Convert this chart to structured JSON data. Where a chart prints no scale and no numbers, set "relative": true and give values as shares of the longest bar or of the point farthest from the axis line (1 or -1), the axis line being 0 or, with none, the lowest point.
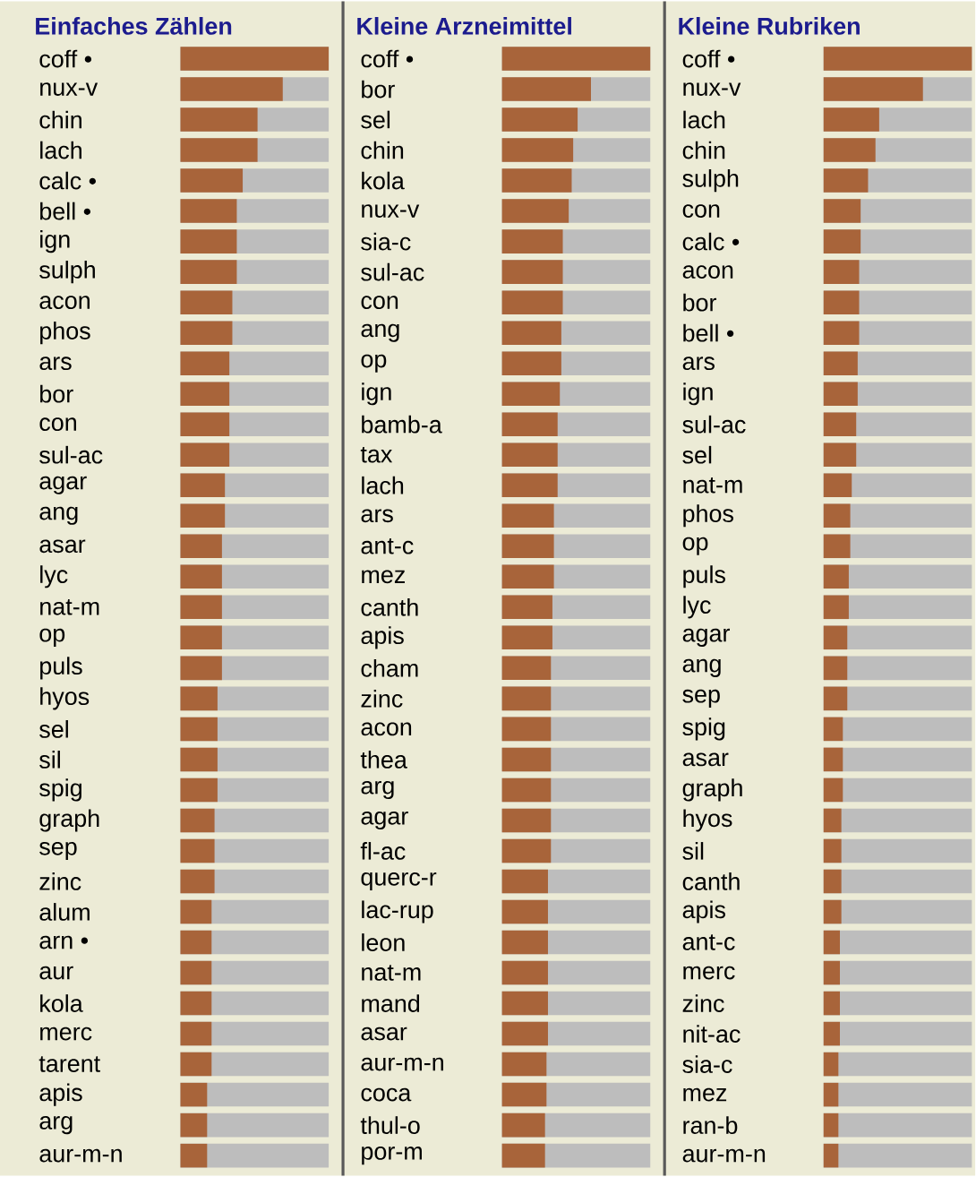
{
  "chart_data": [
    {
      "type": "bar",
      "orientation": "horizontal",
      "relative": true,
      "title": "Einfaches Zählen",
      "color": "#a8643a",
      "categories": [
        "coff •",
        "nux-v",
        "chin",
        "lach",
        "calc •",
        "bell •",
        "ign",
        "sulph",
        "acon",
        "phos",
        "ars",
        "bor",
        "con",
        "sul-ac",
        "agar",
        "ang",
        "asar",
        "lyc",
        "nat-m",
        "op",
        "puls",
        "hyos",
        "sel",
        "sil",
        "spig",
        "graph",
        "sep",
        "zinc",
        "alum",
        "arn •",
        "aur",
        "kola",
        "merc",
        "tarent",
        "apis",
        "arg",
        "aur-m-n"
      ],
      "values": [
        1,
        0.69,
        0.52,
        0.52,
        0.42,
        0.38,
        0.38,
        0.38,
        0.35,
        0.35,
        0.33,
        0.33,
        0.33,
        0.33,
        0.3,
        0.3,
        0.28,
        0.28,
        0.28,
        0.28,
        0.28,
        0.25,
        0.25,
        0.25,
        0.25,
        0.23,
        0.23,
        0.23,
        0.21,
        0.21,
        0.21,
        0.21,
        0.21,
        0.21,
        0.18,
        0.18,
        0.18
      ]
    },
    {
      "type": "bar",
      "orientation": "horizontal",
      "relative": true,
      "title": "Kleine Arzneimittel",
      "color": "#a8643a",
      "categories": [
        "coff •",
        "bor",
        "sel",
        "chin",
        "kola",
        "nux-v",
        "sia-c",
        "sul-ac",
        "con",
        "ang",
        "op",
        "ign",
        "bamb-a",
        "tax",
        "lach",
        "ars",
        "ant-c",
        "mez",
        "canth",
        "apis",
        "cham",
        "zinc",
        "acon",
        "thea",
        "arg",
        "agar",
        "fl-ac",
        "querc-r",
        "lac-rup",
        "leon",
        "nat-m",
        "mand",
        "asar",
        "aur-m-n",
        "coca",
        "thul-o",
        "por-m"
      ],
      "values": [
        1,
        0.6,
        0.51,
        0.48,
        0.47,
        0.45,
        0.41,
        0.41,
        0.41,
        0.4,
        0.4,
        0.39,
        0.375,
        0.375,
        0.375,
        0.35,
        0.35,
        0.35,
        0.34,
        0.34,
        0.33,
        0.33,
        0.33,
        0.33,
        0.33,
        0.33,
        0.33,
        0.31,
        0.31,
        0.31,
        0.31,
        0.31,
        0.31,
        0.3,
        0.3,
        0.29,
        0.29
      ]
    },
    {
      "type": "bar",
      "orientation": "horizontal",
      "relative": true,
      "title": "Kleine Rubriken",
      "color": "#a8643a",
      "categories": [
        "coff •",
        "nux-v",
        "lach",
        "chin",
        "sulph",
        "con",
        "calc •",
        "acon",
        "bor",
        "bell •",
        "ars",
        "ign",
        "sul-ac",
        "sel",
        "nat-m",
        "phos",
        "op",
        "puls",
        "lyc",
        "agar",
        "ang",
        "sep",
        "spig",
        "asar",
        "graph",
        "hyos",
        "sil",
        "canth",
        "apis",
        "ant-c",
        "merc",
        "zinc",
        "nit-ac",
        "sia-c",
        "mez",
        "ran-b",
        "aur-m-n"
      ],
      "values": [
        1,
        0.67,
        0.375,
        0.35,
        0.3,
        0.25,
        0.25,
        0.24,
        0.24,
        0.24,
        0.23,
        0.23,
        0.22,
        0.22,
        0.19,
        0.18,
        0.18,
        0.17,
        0.17,
        0.16,
        0.16,
        0.16,
        0.13,
        0.13,
        0.13,
        0.12,
        0.12,
        0.12,
        0.12,
        0.11,
        0.11,
        0.11,
        0.11,
        0.1,
        0.1,
        0.1,
        0.1
      ]
    }
  ]
}
